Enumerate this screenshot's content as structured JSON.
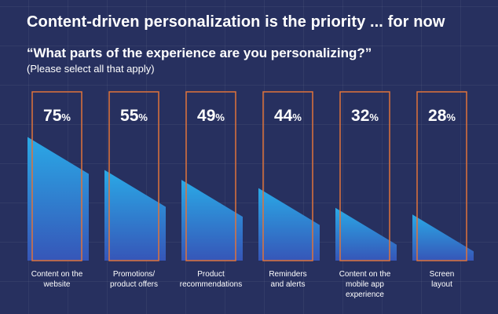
{
  "header": {
    "title": "Content-driven personalization is the priority ... for now",
    "question": "“What parts of the experience are you personalizing?”",
    "note": "(Please select all that apply)"
  },
  "colors": {
    "background": "#27305f",
    "frame": "#e0733a",
    "bar_top": "#2aa9e6",
    "bar_bottom": "#3656b8"
  },
  "chart_data": {
    "type": "bar",
    "title": "What parts of the experience are you personalizing?",
    "subtitle": "(Please select all that apply)",
    "unit": "%",
    "ylim": [
      0,
      100
    ],
    "categories": [
      "Content on the website",
      "Promotions/ product offers",
      "Product recommendations",
      "Reminders and alerts",
      "Content on the mobile app experience",
      "Screen layout"
    ],
    "display_labels": [
      "Content on the\nwebsite",
      "Promotions/\nproduct offers",
      "Product\nrecommendations",
      "Reminders\nand alerts",
      "Content on the\nmobile app\nexperience",
      "Screen\nlayout"
    ],
    "values": [
      75,
      55,
      49,
      44,
      32,
      28
    ],
    "value_labels": [
      "75",
      "55",
      "49",
      "44",
      "32",
      "28"
    ]
  }
}
